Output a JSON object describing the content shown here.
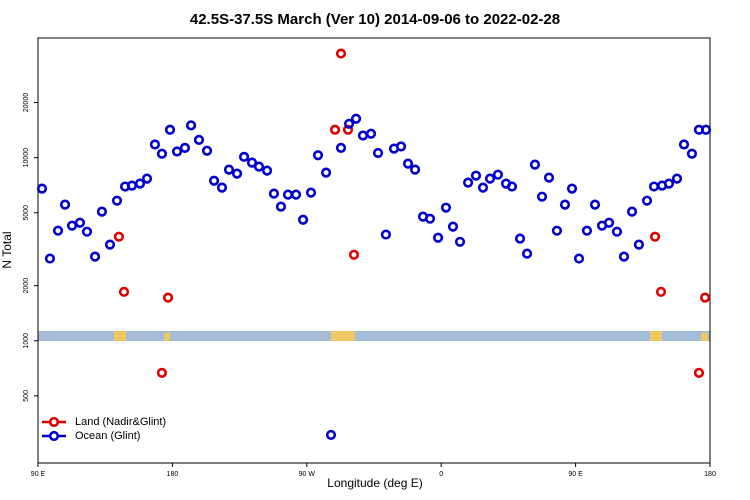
{
  "chart_data": {
    "type": "scatter",
    "title": "42.5S-37.5S March (Ver 10)   2014-09-06 to 2022-02-28",
    "x_label": "Longitude (deg E)",
    "y_label": "N Total",
    "log_y": true,
    "grid": false,
    "legend": "lower left",
    "xlim": [
      90,
      540
    ],
    "xticks": [
      {
        "value": 90,
        "label": "90 E"
      },
      {
        "value": 180,
        "label": "180"
      },
      {
        "value": 270,
        "label": "90 W"
      },
      {
        "value": 360,
        "label": "0"
      },
      {
        "value": 450,
        "label": "90 E"
      },
      {
        "value": 540,
        "label": "180"
      }
    ],
    "ylim": [
      215,
      45000
    ],
    "yticks": [
      500,
      1000,
      2000,
      5000,
      10000,
      20000
    ],
    "series": [
      {
        "name": "Land (Nadir&Glint)",
        "color": "#e00000",
        "x": [
          144.2,
          147.6,
          173,
          177.1,
          288.9,
          292.9,
          297.6,
          301.6,
          503.2,
          507.2,
          532.6,
          536.7
        ],
        "values": [
          3700,
          1850,
          668,
          1720,
          14200,
          37000,
          14200,
          2950,
          3700,
          1850,
          668,
          1720
        ]
      },
      {
        "name": "Ocean (Glint)",
        "color": "#0000d0",
        "x": [
          92.7,
          98,
          103.4,
          108.1,
          112.8,
          118.1,
          122.8,
          128.2,
          132.8,
          138.2,
          142.9,
          148.3,
          152.9,
          158.3,
          163,
          168.3,
          173,
          178.4,
          183.1,
          188.4,
          192.5,
          197.8,
          203.2,
          207.9,
          213.2,
          217.9,
          223.3,
          228,
          233.3,
          238,
          243.4,
          248,
          252.7,
          257.4,
          262.8,
          267.5,
          272.8,
          277.5,
          282.9,
          286.2,
          292.9,
          298.3,
          303,
          307.6,
          313,
          317.7,
          323,
          328.4,
          333.1,
          337.8,
          342.5,
          347.8,
          352.5,
          357.9,
          363.2,
          367.9,
          372.6,
          378,
          383.3,
          388,
          392.7,
          398,
          403.4,
          407.4,
          412.8,
          417.5,
          422.8,
          427.5,
          432.2,
          437.5,
          442.9,
          447.6,
          452.3,
          457.6,
          463,
          467.7,
          472.4,
          477.7,
          482.4,
          487.8,
          492.4,
          497.8,
          502.5,
          507.9,
          512.5,
          517.9,
          522.6,
          527.9,
          532.6,
          537.3
        ],
        "values": [
          6770,
          2810,
          3990,
          5540,
          4250,
          4410,
          3940,
          2880,
          5070,
          3350,
          5820,
          6950,
          7030,
          7210,
          7680,
          11800,
          10500,
          14200,
          10800,
          11300,
          15000,
          12500,
          10900,
          7480,
          6860,
          8600,
          8180,
          10100,
          9390,
          8930,
          8490,
          6360,
          5400,
          6280,
          6280,
          4580,
          6440,
          10300,
          8280,
          306,
          11300,
          15300,
          16300,
          13200,
          13500,
          10600,
          3800,
          11200,
          11500,
          9270,
          8600,
          4760,
          4640,
          3650,
          5330,
          4200,
          3470,
          7300,
          7970,
          6860,
          7680,
          8070,
          7210,
          6950,
          3610,
          2990,
          9160,
          6120,
          7780,
          3990,
          5540,
          6770,
          2810,
          3990,
          5540,
          4250,
          4410,
          3940,
          2880,
          5070,
          3350,
          5820,
          6950,
          7030,
          7210,
          7680,
          11800,
          10500,
          14200,
          14200
        ]
      }
    ]
  }
}
